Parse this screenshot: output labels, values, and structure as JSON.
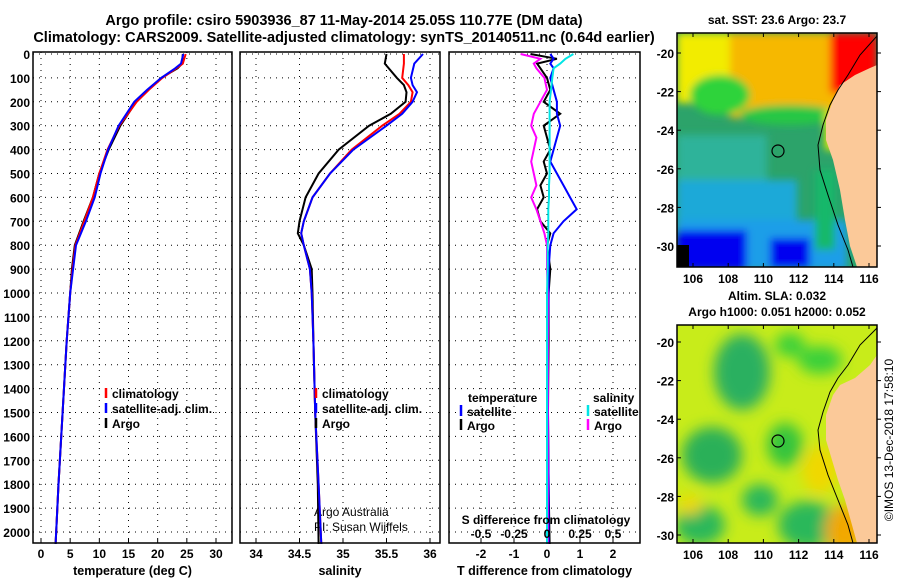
{
  "header": {
    "line1": "Argo profile: csiro 5903936_87 11-May-2014 25.05S 110.77E (DM data)",
    "line2": "Climatology: CARS2009. Satellite-adjusted climatology: synTS_20140511.nc (0.64d earlier)"
  },
  "colors": {
    "climatology": "#ff0000",
    "satellite": "#0000ff",
    "argo": "#000000",
    "sal_satellite": "#00e5e5",
    "sal_argo": "#ff00ff",
    "land": "#fbc999"
  },
  "credit": {
    "argo_australia": "Argo Australia",
    "pi": "PI: Susan Wijffels",
    "imos": "©IMOS 13-Dec-2018 17:58:10"
  },
  "chart_data": [
    {
      "type": "line",
      "title": "",
      "xlabel": "temperature (deg C)",
      "ylabel": "depth",
      "xlim": [
        -1.4,
        32.8
      ],
      "ylim": [
        2045,
        0
      ],
      "xticks": [
        "0",
        "5",
        "10",
        "15",
        "20",
        "25",
        "30"
      ],
      "yticks": [
        "0",
        "100",
        "200",
        "300",
        "400",
        "500",
        "600",
        "700",
        "800",
        "900",
        "1000",
        "1100",
        "1200",
        "1300",
        "1400",
        "1500",
        "1600",
        "1700",
        "1800",
        "1900",
        "2000"
      ],
      "grid": true,
      "legend": [
        "climatology",
        "satellite-adj. clim.",
        "Argo"
      ],
      "depth": [
        0,
        40,
        60,
        100,
        150,
        200,
        300,
        400,
        500,
        600,
        700,
        800,
        900,
        1000,
        1200,
        1500,
        1800,
        2050
      ],
      "series": [
        {
          "name": "climatology",
          "values": [
            24.8,
            24.3,
            23.2,
            20.8,
            18.5,
            16.4,
            13.4,
            11.4,
            10.0,
            8.9,
            7.4,
            5.9,
            5.4,
            5.0,
            4.4,
            3.7,
            3.0,
            2.5
          ]
        },
        {
          "name": "satellite-adj. clim.",
          "values": [
            24.4,
            24.0,
            23.0,
            20.6,
            18.2,
            16.0,
            13.3,
            11.5,
            10.2,
            9.2,
            7.7,
            6.0,
            5.5,
            5.0,
            4.4,
            3.7,
            3.0,
            2.5
          ]
        },
        {
          "name": "Argo",
          "values": [
            24.3,
            24.2,
            23.4,
            20.6,
            18.3,
            16.3,
            13.6,
            11.6,
            10.0,
            8.9,
            7.3,
            5.8,
            5.3,
            5.0,
            4.4,
            3.7,
            3.0,
            2.5
          ]
        }
      ]
    },
    {
      "type": "line",
      "xlabel": "salinity",
      "xlim": [
        33.82,
        36.12
      ],
      "ylim": [
        2045,
        0
      ],
      "xticks": [
        "34",
        "34.5",
        "35",
        "35.5",
        "36"
      ],
      "grid": true,
      "legend": [
        "climatology",
        "satellite-adj. clim.",
        "Argo"
      ],
      "depth": [
        0,
        40,
        100,
        130,
        160,
        200,
        250,
        300,
        400,
        500,
        600,
        700,
        750,
        800,
        900,
        1000,
        1200,
        1500,
        1800,
        2050
      ],
      "series": [
        {
          "name": "climatology",
          "values": [
            35.7,
            35.7,
            35.68,
            35.75,
            35.8,
            35.78,
            35.65,
            35.45,
            35.1,
            34.85,
            34.65,
            34.55,
            34.52,
            34.55,
            34.62,
            34.64,
            34.66,
            34.68,
            34.72,
            34.75
          ]
        },
        {
          "name": "satellite-adj. clim.",
          "values": [
            35.92,
            35.82,
            35.78,
            35.8,
            35.85,
            35.8,
            35.68,
            35.5,
            35.12,
            34.85,
            34.65,
            34.55,
            34.52,
            34.55,
            34.62,
            34.64,
            34.66,
            34.68,
            34.72,
            34.75
          ]
        },
        {
          "name": "Argo",
          "values": [
            35.5,
            35.48,
            35.62,
            35.7,
            35.73,
            35.72,
            35.55,
            35.3,
            34.95,
            34.72,
            34.57,
            34.5,
            34.48,
            34.55,
            34.64,
            34.65,
            34.66,
            34.68,
            34.71,
            34.72
          ]
        }
      ]
    },
    {
      "type": "line",
      "xlabel": "T difference from climatology",
      "x2label": "S difference from climatology",
      "xlim": [
        -2.97,
        2.82
      ],
      "ylim": [
        2045,
        0
      ],
      "xticks": [
        "-2",
        "-1",
        "0",
        "1",
        "2"
      ],
      "x2ticks": [
        "-0.5",
        "-0.25",
        "0",
        "0.25",
        "0.5"
      ],
      "grid": true,
      "legend_temperature": {
        "heading": "temperature",
        "items": [
          "satellite",
          "Argo"
        ]
      },
      "legend_salinity": {
        "heading": "salinity",
        "items": [
          "satellite",
          "Argo"
        ]
      },
      "depth": [
        0,
        20,
        40,
        60,
        100,
        150,
        200,
        250,
        300,
        350,
        400,
        450,
        500,
        550,
        600,
        650,
        700,
        750,
        800,
        900,
        1000,
        1200,
        1500,
        1800,
        2050
      ],
      "series": [
        {
          "name": "temperature satellite",
          "values": [
            0.1,
            0.2,
            0.1,
            0.2,
            0.1,
            0.2,
            0.3,
            0.3,
            0.4,
            0.3,
            0.2,
            0.1,
            0.3,
            0.5,
            0.7,
            0.9,
            0.5,
            0.2,
            0.1,
            0.05,
            0.05,
            0.03,
            0.03,
            0.05,
            0.05
          ]
        },
        {
          "name": "temperature Argo",
          "values": [
            -0.5,
            0.3,
            -0.3,
            -0.2,
            0.0,
            0.1,
            -0.1,
            0.4,
            -0.1,
            0.0,
            0.1,
            -0.1,
            0.0,
            -0.2,
            -0.1,
            -0.3,
            -0.2,
            0.1,
            0.0,
            0.1,
            0.05,
            0.05,
            0.03,
            0.05,
            0.08
          ]
        },
        {
          "name": "salinity satellite",
          "values": [
            0.2,
            0.14,
            0.1,
            0.05,
            0.04,
            0.03,
            0.02,
            0.02,
            0.02,
            0.02,
            0.02,
            0.02,
            0.02,
            0.015,
            0.015,
            0.01,
            0.01,
            0.01,
            0.005,
            0.005,
            0.0,
            0.0,
            0.0,
            0.0,
            0.0
          ]
        },
        {
          "name": "salinity Argo",
          "values": [
            -0.2,
            -0.05,
            -0.1,
            -0.08,
            -0.02,
            0.0,
            -0.05,
            -0.1,
            -0.12,
            -0.08,
            -0.1,
            -0.12,
            -0.1,
            -0.08,
            -0.12,
            -0.08,
            -0.05,
            -0.02,
            0.0,
            0.0,
            0.005,
            0.005,
            0.005,
            0.005,
            0.005
          ]
        }
      ]
    },
    {
      "type": "heatmap",
      "title": "sat. SST: 23.6 Argo: 23.7",
      "xticks": [
        "106",
        "108",
        "110",
        "112",
        "114",
        "116"
      ],
      "yticks": [
        "-20",
        "-22",
        "-24",
        "-26",
        "-28",
        "-30"
      ],
      "xlim": [
        105.1,
        116.5
      ],
      "ylim": [
        -31.1,
        -19.0
      ],
      "marker": {
        "lon": 110.77,
        "lat": -25.05
      }
    },
    {
      "type": "heatmap",
      "title": "Altim. SLA: 0.032",
      "subtitle": "Argo h1000: 0.051 h2000: 0.052",
      "xticks": [
        "106",
        "108",
        "110",
        "112",
        "114",
        "116"
      ],
      "yticks": [
        "-20",
        "-22",
        "-24",
        "-26",
        "-28",
        "-30"
      ],
      "xlim": [
        105.1,
        116.5
      ],
      "ylim": [
        -31.1,
        -19.1
      ],
      "marker": {
        "lon": 110.77,
        "lat": -25.05
      }
    }
  ]
}
